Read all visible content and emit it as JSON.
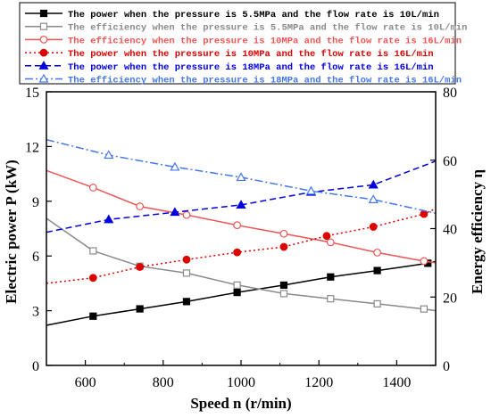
{
  "chart_data": {
    "type": "line",
    "xlabel": "Speed n (r/min)",
    "ylabel_left": "Electric power P (kW)",
    "ylabel_right": "Energy efficiency η",
    "xlim": [
      500,
      1500
    ],
    "ylim_left": [
      0,
      15
    ],
    "ylim_right": [
      0,
      80
    ],
    "x_ticks": [
      600,
      800,
      1000,
      1200,
      1400
    ],
    "y_left_ticks": [
      0,
      3,
      6,
      9,
      12,
      15
    ],
    "y_right_ticks": [
      0,
      20,
      40,
      60,
      80
    ],
    "grid": false,
    "legend_placement": "top",
    "series": [
      {
        "name": "The power when the pressure is 5.5MPa and the flow rate is 10L/min",
        "axis": "left",
        "color": "#000000",
        "marker": "square-filled",
        "dash": "solid",
        "x": [
          500,
          620,
          740,
          860,
          990,
          1110,
          1230,
          1350,
          1480,
          1500
        ],
        "y": [
          2.2,
          2.7,
          3.1,
          3.5,
          4.0,
          4.4,
          4.85,
          5.2,
          5.6,
          5.7
        ]
      },
      {
        "name": "The efficiency when the pressure is 5.5MPa and the flow rate is 10L/min",
        "axis": "right",
        "color": "#8a8a8a",
        "marker": "square-open",
        "dash": "solid",
        "x": [
          500,
          620,
          740,
          860,
          990,
          1110,
          1230,
          1350,
          1470,
          1500
        ],
        "y": [
          43,
          33.5,
          29,
          27,
          23.5,
          21,
          19.5,
          18,
          16.5,
          16
        ]
      },
      {
        "name": "The efficiency when the pressure is 10MPa and the flow rate is 16L/min",
        "axis": "right",
        "color": "#ee5555",
        "marker": "circle-open",
        "dash": "solid",
        "x": [
          500,
          620,
          740,
          860,
          990,
          1110,
          1230,
          1350,
          1470,
          1500
        ],
        "y": [
          57,
          52,
          46.5,
          44,
          41,
          38.5,
          36,
          33,
          30.5,
          30
        ]
      },
      {
        "name": "The power when the pressure is 10MPa and the flow rate is 16L/min",
        "axis": "left",
        "color": "#dd0000",
        "marker": "circle-filled",
        "dash": "dot",
        "x": [
          500,
          620,
          740,
          860,
          990,
          1110,
          1220,
          1340,
          1470,
          1500
        ],
        "y": [
          4.5,
          4.8,
          5.4,
          5.8,
          6.2,
          6.5,
          7.1,
          7.6,
          8.3,
          8.6
        ]
      },
      {
        "name": "The power when the pressure is 18MPa and the flow rate is 16L/min",
        "axis": "left",
        "color": "#0000dd",
        "marker": "triangle-filled",
        "dash": "dash",
        "x": [
          500,
          660,
          830,
          1000,
          1180,
          1340,
          1500
        ],
        "y": [
          7.3,
          8.0,
          8.4,
          8.8,
          9.5,
          9.9,
          11.2
        ]
      },
      {
        "name": "The efficiency when the pressure is 18MPa and the flow rate is 16L/min",
        "axis": "right",
        "color": "#4477ee",
        "marker": "triangle-open",
        "dash": "dashdot",
        "x": [
          500,
          660,
          830,
          1000,
          1180,
          1340,
          1500
        ],
        "y": [
          66,
          61.5,
          58,
          55,
          51,
          48.5,
          44.5
        ]
      }
    ]
  }
}
